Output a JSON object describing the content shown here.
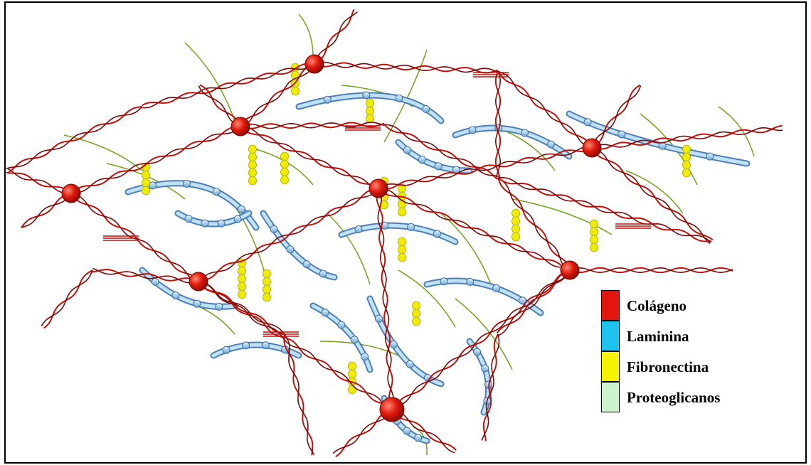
{
  "colors": {
    "collagen": "#c0100c",
    "laminin": "#8cc8ea",
    "fibronectin": "#f0ec00",
    "proteoglycan": "#6fa318",
    "node": "#e11a0e"
  },
  "legend": {
    "items": [
      {
        "label": "Colágeno",
        "color": "#e3160f"
      },
      {
        "label": "Laminina",
        "color": "#1ec3f0"
      },
      {
        "label": "Fibronectina",
        "color": "#f7f200"
      },
      {
        "label": "Proteoglicanos",
        "color": "#cdf3cf"
      }
    ]
  }
}
